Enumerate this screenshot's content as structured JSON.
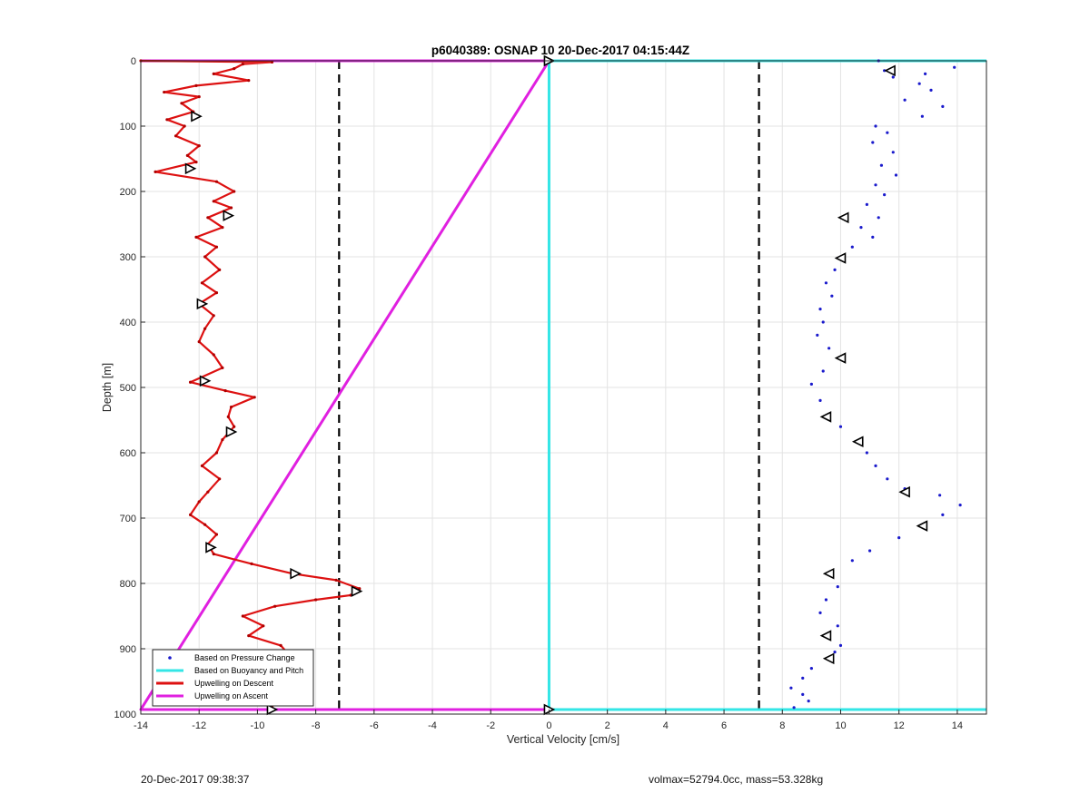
{
  "chart_data": {
    "type": "scatter",
    "title": "p6040389: OSNAP 10 20-Dec-2017 04:15:44Z",
    "xlabel": "Vertical Velocity [cm/s]",
    "ylabel": "Depth [m]",
    "xlim": [
      -14,
      15
    ],
    "ylim": [
      0,
      1000
    ],
    "y_reversed": true,
    "grid": true,
    "legend_placement": "bottom-left",
    "x_ticks": [
      -14,
      -12,
      -10,
      -8,
      -6,
      -4,
      -2,
      0,
      2,
      4,
      6,
      8,
      10,
      12,
      14
    ],
    "y_ticks": [
      0,
      100,
      200,
      300,
      400,
      500,
      600,
      700,
      800,
      900,
      1000
    ],
    "reference_lines": [
      {
        "x": -7.2,
        "style": "dashed",
        "color": "#000000"
      },
      {
        "x": 7.2,
        "style": "dashed",
        "color": "#000000"
      }
    ],
    "series": [
      {
        "name": "Based on Pressure Change",
        "kind": "markers",
        "color": "#1a1acc",
        "points": [
          [
            11.3,
            0
          ],
          [
            13.9,
            10
          ],
          [
            11.5,
            15
          ],
          [
            12.9,
            20
          ],
          [
            11.8,
            25
          ],
          [
            12.7,
            35
          ],
          [
            13.1,
            45
          ],
          [
            12.2,
            60
          ],
          [
            13.5,
            70
          ],
          [
            12.8,
            85
          ],
          [
            11.2,
            100
          ],
          [
            11.6,
            110
          ],
          [
            11.1,
            125
          ],
          [
            11.8,
            140
          ],
          [
            11.4,
            160
          ],
          [
            11.9,
            175
          ],
          [
            11.2,
            190
          ],
          [
            11.5,
            205
          ],
          [
            10.9,
            220
          ],
          [
            11.3,
            240
          ],
          [
            10.7,
            255
          ],
          [
            11.1,
            270
          ],
          [
            10.4,
            285
          ],
          [
            10.0,
            300
          ],
          [
            9.8,
            320
          ],
          [
            9.5,
            340
          ],
          [
            9.7,
            360
          ],
          [
            9.3,
            380
          ],
          [
            9.4,
            400
          ],
          [
            9.2,
            420
          ],
          [
            9.6,
            440
          ],
          [
            10.0,
            455
          ],
          [
            9.4,
            475
          ],
          [
            9.0,
            495
          ],
          [
            9.3,
            520
          ],
          [
            9.5,
            545
          ],
          [
            10.0,
            560
          ],
          [
            10.7,
            580
          ],
          [
            10.9,
            600
          ],
          [
            11.2,
            620
          ],
          [
            11.6,
            640
          ],
          [
            12.2,
            655
          ],
          [
            13.4,
            665
          ],
          [
            14.1,
            680
          ],
          [
            13.5,
            695
          ],
          [
            12.8,
            710
          ],
          [
            12.0,
            730
          ],
          [
            11.0,
            750
          ],
          [
            10.4,
            765
          ],
          [
            9.6,
            785
          ],
          [
            9.9,
            805
          ],
          [
            9.5,
            825
          ],
          [
            9.3,
            845
          ],
          [
            9.9,
            865
          ],
          [
            9.5,
            880
          ],
          [
            10.0,
            895
          ],
          [
            9.8,
            905
          ],
          [
            9.6,
            915
          ],
          [
            9.0,
            930
          ],
          [
            8.7,
            945
          ],
          [
            8.3,
            960
          ],
          [
            8.7,
            970
          ],
          [
            8.9,
            980
          ],
          [
            8.4,
            990
          ]
        ]
      },
      {
        "name": "Based on Buoyancy and Pitch",
        "kind": "line",
        "color": "#33e6e6",
        "points": [
          [
            15,
            0
          ],
          [
            0,
            0
          ],
          [
            0,
            993
          ],
          [
            15,
            993
          ]
        ]
      },
      {
        "name": "Upwelling on Descent",
        "kind": "line",
        "color": "#dd1111",
        "points": [
          [
            -14,
            0
          ],
          [
            -9.5,
            2
          ],
          [
            -10.5,
            5
          ],
          [
            -10.8,
            12
          ],
          [
            -11.5,
            20
          ],
          [
            -10.3,
            30
          ],
          [
            -12.1,
            38
          ],
          [
            -13.2,
            48
          ],
          [
            -12.0,
            55
          ],
          [
            -12.6,
            65
          ],
          [
            -12.2,
            78
          ],
          [
            -13.1,
            90
          ],
          [
            -12.5,
            100
          ],
          [
            -12.8,
            115
          ],
          [
            -12.0,
            130
          ],
          [
            -12.4,
            145
          ],
          [
            -12.1,
            155
          ],
          [
            -13.5,
            170
          ],
          [
            -11.4,
            185
          ],
          [
            -10.8,
            200
          ],
          [
            -11.5,
            215
          ],
          [
            -10.9,
            225
          ],
          [
            -11.7,
            240
          ],
          [
            -11.2,
            255
          ],
          [
            -12.1,
            270
          ],
          [
            -11.4,
            285
          ],
          [
            -11.8,
            300
          ],
          [
            -11.3,
            320
          ],
          [
            -11.9,
            340
          ],
          [
            -11.4,
            355
          ],
          [
            -12.0,
            372
          ],
          [
            -11.5,
            390
          ],
          [
            -11.8,
            410
          ],
          [
            -12.0,
            430
          ],
          [
            -11.5,
            450
          ],
          [
            -11.2,
            470
          ],
          [
            -12.3,
            492
          ],
          [
            -11.1,
            505
          ],
          [
            -10.1,
            515
          ],
          [
            -10.9,
            530
          ],
          [
            -11.0,
            545
          ],
          [
            -10.8,
            560
          ],
          [
            -11.2,
            580
          ],
          [
            -11.4,
            600
          ],
          [
            -11.9,
            620
          ],
          [
            -11.3,
            640
          ],
          [
            -11.7,
            660
          ],
          [
            -12.0,
            675
          ],
          [
            -12.3,
            695
          ],
          [
            -11.8,
            710
          ],
          [
            -11.4,
            725
          ],
          [
            -11.7,
            740
          ],
          [
            -11.5,
            755
          ],
          [
            -10.2,
            770
          ],
          [
            -8.8,
            785
          ],
          [
            -7.3,
            795
          ],
          [
            -6.5,
            808
          ],
          [
            -6.8,
            818
          ],
          [
            -8.0,
            825
          ],
          [
            -9.4,
            835
          ],
          [
            -10.5,
            850
          ],
          [
            -9.8,
            865
          ],
          [
            -10.3,
            880
          ],
          [
            -9.2,
            895
          ],
          [
            -8.9,
            910
          ],
          [
            -9.8,
            925
          ],
          [
            -9.2,
            945
          ],
          [
            -9.4,
            965
          ],
          [
            -9.5,
            992
          ]
        ]
      },
      {
        "name": "Upwelling on Ascent",
        "kind": "line",
        "color": "#e020e0",
        "points": [
          [
            -14,
            0
          ],
          [
            0,
            0
          ],
          [
            -14,
            993
          ],
          [
            0,
            993
          ]
        ]
      }
    ],
    "descent_marker_points": [
      [
        -12.1,
        85
      ],
      [
        -12.3,
        165
      ],
      [
        -11.0,
        237
      ],
      [
        -11.9,
        372
      ],
      [
        -11.8,
        490
      ],
      [
        -10.9,
        568
      ],
      [
        -11.6,
        745
      ],
      [
        -8.7,
        785
      ],
      [
        -6.6,
        812
      ],
      [
        -9.3,
        925
      ],
      [
        -9.5,
        993
      ],
      [
        0,
        0
      ],
      [
        0,
        993
      ]
    ],
    "ascent_marker_points": [
      [
        11.7,
        15
      ],
      [
        10.1,
        240
      ],
      [
        10.0,
        302
      ],
      [
        10.0,
        455
      ],
      [
        9.5,
        545
      ],
      [
        10.6,
        583
      ],
      [
        12.2,
        660
      ],
      [
        12.8,
        712
      ],
      [
        9.6,
        785
      ],
      [
        9.5,
        880
      ],
      [
        9.6,
        915
      ]
    ]
  },
  "footer": {
    "left": "20-Dec-2017 09:38:37",
    "right": "volmax=52794.0cc, mass=53.328kg"
  }
}
